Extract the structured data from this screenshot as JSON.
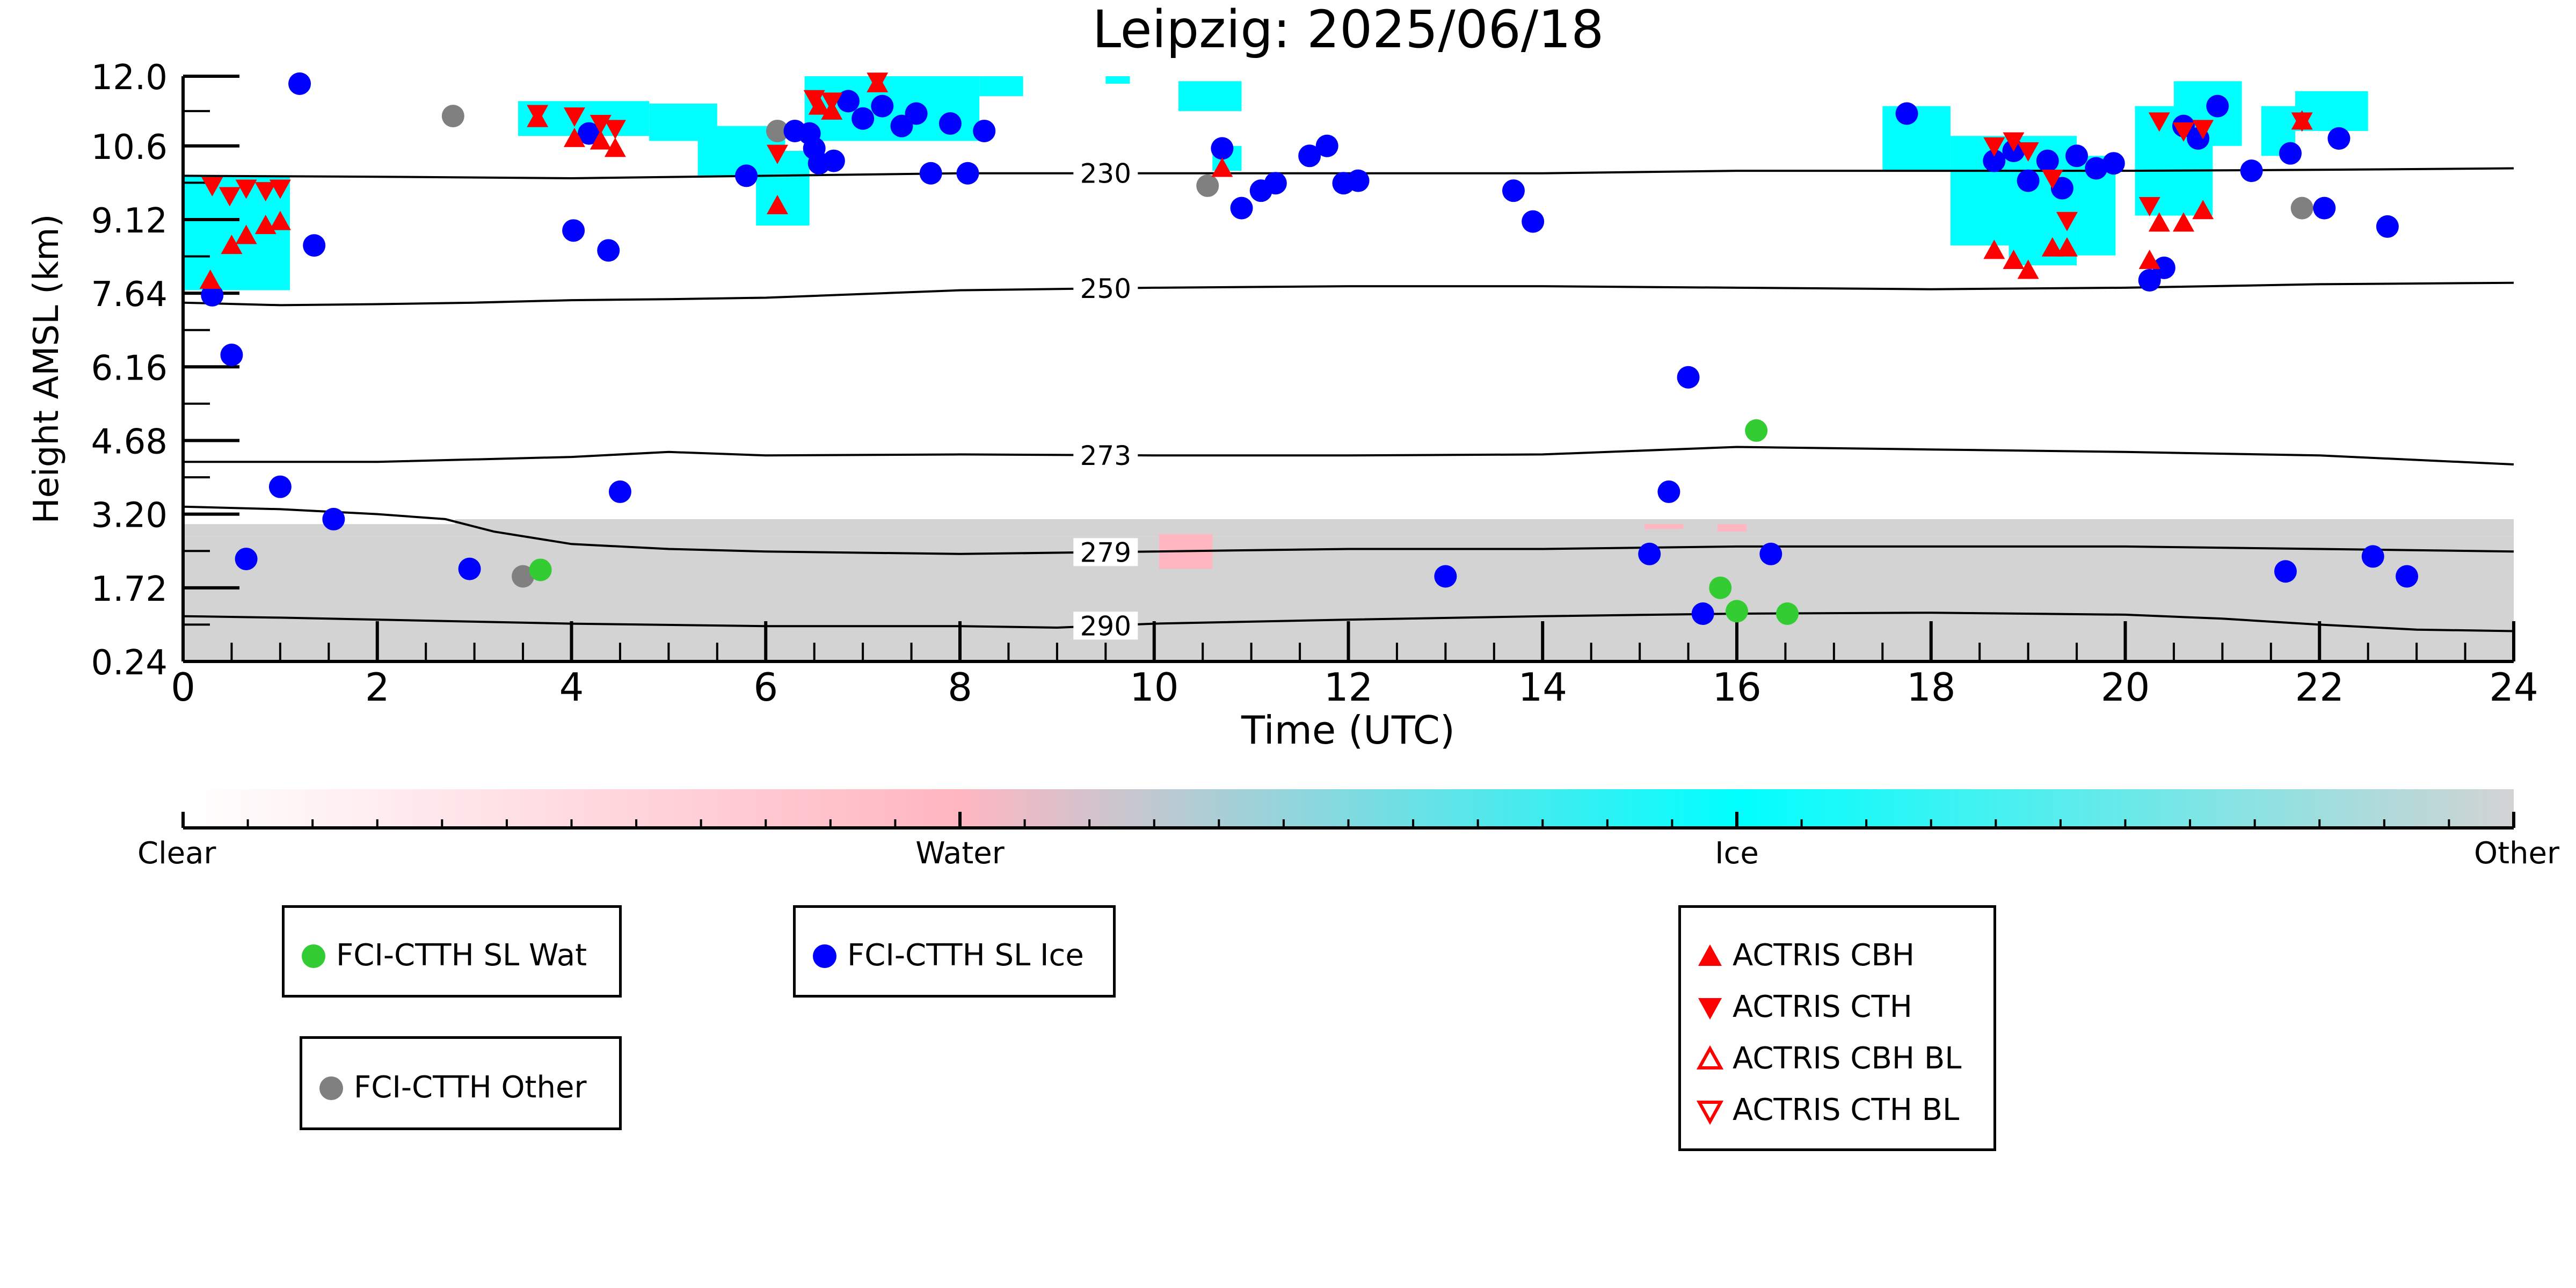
{
  "chart_data": {
    "type": "scatter",
    "title": "Leipzig: 2025/06/18",
    "xlabel": "Time (UTC)",
    "ylabel": "Height AMSL (km)",
    "xlim": [
      0,
      24
    ],
    "ylim": [
      0.24,
      12.0
    ],
    "xticks": [
      "0",
      "2",
      "4",
      "6",
      "8",
      "10",
      "12",
      "14",
      "16",
      "18",
      "20",
      "22",
      "24"
    ],
    "yticks": [
      "0.24",
      "1.72",
      "3.20",
      "4.68",
      "6.16",
      "7.64",
      "9.12",
      "10.6",
      "12.0"
    ],
    "colorbar": {
      "labels": [
        "Clear",
        "Water",
        "Ice",
        "Other"
      ],
      "colors": [
        "#ffffff",
        "#ffb6c1",
        "#00ffff",
        "#d3d3d3"
      ]
    },
    "colors": {
      "fci_wat": "#33cc33",
      "fci_ice": "#0000ff",
      "fci_other": "#808080",
      "actris": "#ff0000",
      "ice_mask": "#00ffff",
      "water_mask": "#ffb6c1",
      "other_mask": "#d3d3d3"
    },
    "legend": [
      {
        "name": "FCI-CTTH SL Wat",
        "marker": "circle",
        "color": "#33cc33"
      },
      {
        "name": "FCI-CTTH SL Ice",
        "marker": "circle",
        "color": "#0000ff"
      },
      {
        "name": "FCI-CTTH Other",
        "marker": "circle",
        "color": "#808080"
      },
      {
        "name": "ACTRIS CBH",
        "marker": "triangle-up",
        "color": "#ff0000"
      },
      {
        "name": "ACTRIS CTH",
        "marker": "triangle-down",
        "color": "#ff0000"
      },
      {
        "name": "ACTRIS CBH BL",
        "marker": "triangle-up-open",
        "color": "#ff0000"
      },
      {
        "name": "ACTRIS CTH BL",
        "marker": "triangle-down-open",
        "color": "#ff0000"
      }
    ],
    "isotherms": [
      {
        "label": "230",
        "x": [
          0,
          2,
          4,
          6,
          8,
          10,
          12,
          14,
          16,
          18,
          20,
          22,
          24
        ],
        "y": [
          10.0,
          9.98,
          9.95,
          10.0,
          10.05,
          10.05,
          10.05,
          10.05,
          10.1,
          10.1,
          10.1,
          10.12,
          10.15
        ]
      },
      {
        "label": "250",
        "x": [
          0,
          1,
          2,
          3,
          4,
          5,
          6,
          8,
          10,
          12,
          14,
          16,
          18,
          20,
          22,
          24
        ],
        "y": [
          7.45,
          7.4,
          7.42,
          7.45,
          7.5,
          7.52,
          7.55,
          7.7,
          7.75,
          7.78,
          7.78,
          7.75,
          7.72,
          7.75,
          7.82,
          7.85
        ]
      },
      {
        "label": "273",
        "x": [
          0,
          2,
          4,
          5,
          6,
          8,
          10,
          12,
          14,
          16,
          18,
          20,
          22,
          24
        ],
        "y": [
          4.25,
          4.25,
          4.35,
          4.45,
          4.38,
          4.4,
          4.38,
          4.38,
          4.4,
          4.55,
          4.5,
          4.45,
          4.38,
          4.2
        ]
      },
      {
        "label": "279",
        "x": [
          0,
          1,
          2,
          2.7,
          3.2,
          4,
          5,
          6,
          8,
          10,
          12,
          14,
          16,
          18,
          20,
          22,
          24
        ],
        "y": [
          3.35,
          3.3,
          3.2,
          3.1,
          2.85,
          2.6,
          2.5,
          2.45,
          2.4,
          2.45,
          2.5,
          2.5,
          2.55,
          2.55,
          2.55,
          2.5,
          2.45
        ]
      },
      {
        "label": "290",
        "x": [
          0,
          1,
          2,
          4,
          6,
          8,
          9,
          10,
          12,
          14,
          16,
          18,
          20,
          21,
          22,
          23,
          24
        ],
        "y": [
          1.15,
          1.12,
          1.08,
          1.0,
          0.95,
          0.95,
          0.92,
          1.0,
          1.08,
          1.15,
          1.2,
          1.22,
          1.18,
          1.1,
          0.98,
          0.88,
          0.85
        ]
      }
    ],
    "isotherm_label_x": 9.5,
    "fci_wat": {
      "x": [
        3.68,
        15.83,
        16.0,
        16.2,
        16.52
      ],
      "y": [
        2.08,
        1.72,
        1.25,
        4.88,
        1.2
      ]
    },
    "fci_other": {
      "x": [
        2.78,
        3.5,
        6.12,
        10.55,
        21.82
      ],
      "y": [
        11.2,
        1.95,
        10.9,
        9.8,
        9.35
      ]
    },
    "fci_ice": {
      "x": [
        0.3,
        0.5,
        0.65,
        1.0,
        1.2,
        1.35,
        1.55,
        2.95,
        4.02,
        4.18,
        4.38,
        4.5,
        5.8,
        6.3,
        6.45,
        6.5,
        6.55,
        6.7,
        6.85,
        7.0,
        7.2,
        7.4,
        7.55,
        7.7,
        7.9,
        8.08,
        8.25,
        10.7,
        10.9,
        11.1,
        11.25,
        11.6,
        11.78,
        11.95,
        12.1,
        13.0,
        13.7,
        13.9,
        15.1,
        15.3,
        15.5,
        15.65,
        16.35,
        17.75,
        18.65,
        18.85,
        19.0,
        19.2,
        19.35,
        19.5,
        19.7,
        19.88,
        20.25,
        20.4,
        20.6,
        20.75,
        20.95,
        21.3,
        21.65,
        21.7,
        22.05,
        22.2,
        22.55,
        22.7,
        22.9
      ],
      "y": [
        7.6,
        6.4,
        2.3,
        3.75,
        11.85,
        8.6,
        3.1,
        2.1,
        8.9,
        10.85,
        8.5,
        3.65,
        10.0,
        10.9,
        10.85,
        10.55,
        10.25,
        10.3,
        11.5,
        11.15,
        11.4,
        11.0,
        11.25,
        10.05,
        11.05,
        10.05,
        10.9,
        10.55,
        9.35,
        9.7,
        9.85,
        10.4,
        10.6,
        9.85,
        9.9,
        1.95,
        9.7,
        9.08,
        2.4,
        3.65,
        5.95,
        1.2,
        2.4,
        11.25,
        10.3,
        10.5,
        9.9,
        10.3,
        9.75,
        10.4,
        10.15,
        10.25,
        7.9,
        8.15,
        11.0,
        10.75,
        11.4,
        10.1,
        2.05,
        10.45,
        9.35,
        10.75,
        2.35,
        8.98,
        1.95
      ]
    },
    "actris_cbh": {
      "x": [
        0.28,
        0.5,
        0.65,
        0.85,
        1.0,
        3.65,
        4.03,
        4.3,
        4.45,
        6.12,
        6.55,
        6.68,
        7.15,
        10.7,
        18.65,
        18.85,
        19.0,
        19.25,
        19.4,
        20.25,
        20.35,
        20.6,
        20.8,
        21.82
      ],
      "y": [
        7.9,
        8.6,
        8.8,
        9.0,
        9.08,
        11.15,
        10.75,
        10.7,
        10.55,
        9.4,
        11.4,
        11.3,
        11.85,
        10.15,
        8.5,
        8.3,
        8.1,
        8.55,
        8.55,
        8.3,
        9.05,
        9.05,
        9.3,
        11.1
      ]
    },
    "actris_cth": {
      "x": [
        0.3,
        0.48,
        0.65,
        0.85,
        1.0,
        3.65,
        4.03,
        4.3,
        4.45,
        6.12,
        6.5,
        6.68,
        7.15,
        18.65,
        18.85,
        19.0,
        19.25,
        19.4,
        20.25,
        20.35,
        20.6,
        20.8,
        21.82
      ],
      "y": [
        9.8,
        9.6,
        9.75,
        9.7,
        9.75,
        11.25,
        11.2,
        11.05,
        10.95,
        10.45,
        11.55,
        11.5,
        11.9,
        10.6,
        10.7,
        10.5,
        9.95,
        9.1,
        9.4,
        11.1,
        10.9,
        10.95,
        11.1
      ]
    },
    "ice_mask": [
      [
        0,
        7.7,
        1.1,
        10.0
      ],
      [
        3.45,
        10.8,
        4.8,
        11.5
      ],
      [
        4.8,
        10.7,
        5.5,
        11.45
      ],
      [
        5.3,
        10.0,
        6.2,
        11.0
      ],
      [
        5.9,
        9.0,
        6.45,
        10.5
      ],
      [
        6.4,
        10.7,
        8.2,
        12.0
      ],
      [
        8.2,
        11.6,
        8.65,
        12.0
      ],
      [
        9.5,
        11.85,
        9.75,
        12.0
      ],
      [
        10.25,
        11.3,
        10.9,
        11.9
      ],
      [
        10.6,
        10.1,
        10.9,
        10.6
      ],
      [
        17.5,
        10.1,
        18.2,
        11.4
      ],
      [
        18.2,
        8.6,
        18.8,
        10.8
      ],
      [
        18.8,
        8.2,
        19.5,
        10.8
      ],
      [
        19.5,
        8.4,
        19.9,
        10.4
      ],
      [
        20.1,
        9.2,
        20.9,
        11.4
      ],
      [
        20.5,
        10.6,
        21.2,
        11.9
      ],
      [
        21.4,
        10.4,
        21.75,
        11.4
      ],
      [
        21.75,
        10.9,
        22.5,
        11.7
      ]
    ],
    "water_mask": [
      [
        10.05,
        2.1,
        10.6,
        2.8
      ],
      [
        15.05,
        2.9,
        15.45,
        3.0
      ],
      [
        15.8,
        2.85,
        16.1,
        3.0
      ]
    ],
    "other_mask": [
      [
        0,
        0.24,
        24,
        2.75
      ],
      [
        0,
        2.75,
        2.8,
        3.0
      ],
      [
        2.8,
        2.75,
        24,
        3.1
      ]
    ]
  }
}
